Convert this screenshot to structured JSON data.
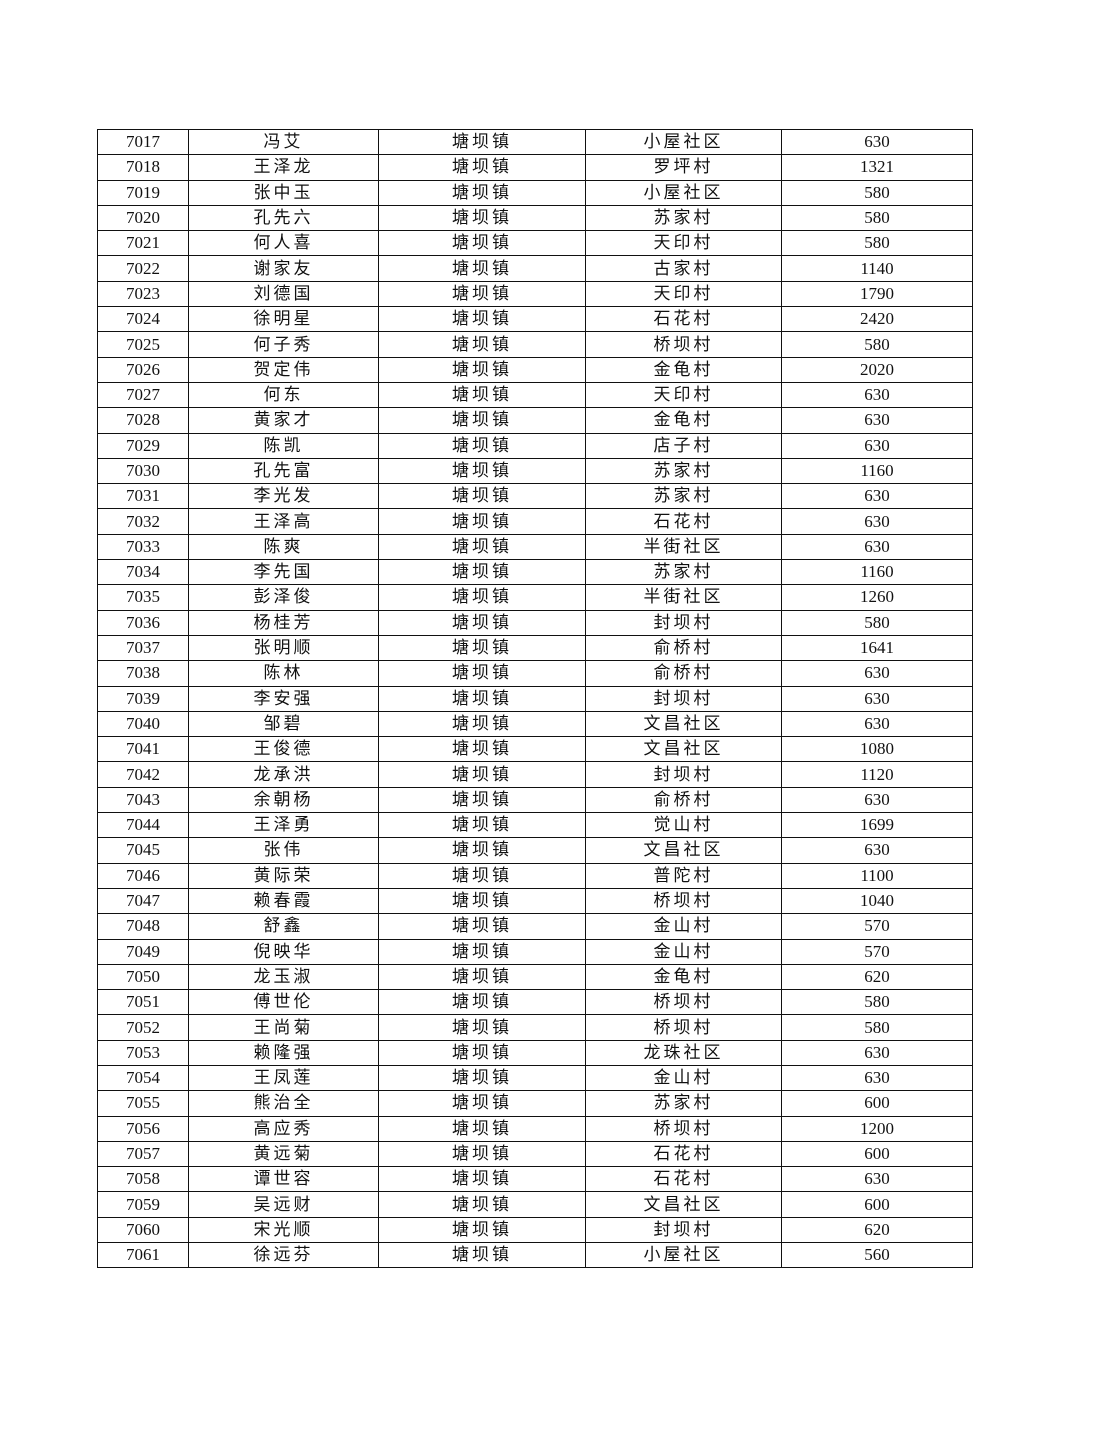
{
  "table": {
    "rows": [
      [
        "7017",
        "冯艾",
        "塘坝镇",
        "小屋社区",
        "630"
      ],
      [
        "7018",
        "王泽龙",
        "塘坝镇",
        "罗坪村",
        "1321"
      ],
      [
        "7019",
        "张中玉",
        "塘坝镇",
        "小屋社区",
        "580"
      ],
      [
        "7020",
        "孔先六",
        "塘坝镇",
        "苏家村",
        "580"
      ],
      [
        "7021",
        "何人喜",
        "塘坝镇",
        "天印村",
        "580"
      ],
      [
        "7022",
        "谢家友",
        "塘坝镇",
        "古家村",
        "1140"
      ],
      [
        "7023",
        "刘德国",
        "塘坝镇",
        "天印村",
        "1790"
      ],
      [
        "7024",
        "徐明星",
        "塘坝镇",
        "石花村",
        "2420"
      ],
      [
        "7025",
        "何子秀",
        "塘坝镇",
        "桥坝村",
        "580"
      ],
      [
        "7026",
        "贺定伟",
        "塘坝镇",
        "金龟村",
        "2020"
      ],
      [
        "7027",
        "何东",
        "塘坝镇",
        "天印村",
        "630"
      ],
      [
        "7028",
        "黄家才",
        "塘坝镇",
        "金龟村",
        "630"
      ],
      [
        "7029",
        "陈凯",
        "塘坝镇",
        "店子村",
        "630"
      ],
      [
        "7030",
        "孔先富",
        "塘坝镇",
        "苏家村",
        "1160"
      ],
      [
        "7031",
        "李光发",
        "塘坝镇",
        "苏家村",
        "630"
      ],
      [
        "7032",
        "王泽高",
        "塘坝镇",
        "石花村",
        "630"
      ],
      [
        "7033",
        "陈爽",
        "塘坝镇",
        "半街社区",
        "630"
      ],
      [
        "7034",
        "李先国",
        "塘坝镇",
        "苏家村",
        "1160"
      ],
      [
        "7035",
        "彭泽俊",
        "塘坝镇",
        "半街社区",
        "1260"
      ],
      [
        "7036",
        "杨桂芳",
        "塘坝镇",
        "封坝村",
        "580"
      ],
      [
        "7037",
        "张明顺",
        "塘坝镇",
        "俞桥村",
        "1641"
      ],
      [
        "7038",
        "陈林",
        "塘坝镇",
        "俞桥村",
        "630"
      ],
      [
        "7039",
        "李安强",
        "塘坝镇",
        "封坝村",
        "630"
      ],
      [
        "7040",
        "邹碧",
        "塘坝镇",
        "文昌社区",
        "630"
      ],
      [
        "7041",
        "王俊德",
        "塘坝镇",
        "文昌社区",
        "1080"
      ],
      [
        "7042",
        "龙承洪",
        "塘坝镇",
        "封坝村",
        "1120"
      ],
      [
        "7043",
        "余朝杨",
        "塘坝镇",
        "俞桥村",
        "630"
      ],
      [
        "7044",
        "王泽勇",
        "塘坝镇",
        "觉山村",
        "1699"
      ],
      [
        "7045",
        "张伟",
        "塘坝镇",
        "文昌社区",
        "630"
      ],
      [
        "7046",
        "黄际荣",
        "塘坝镇",
        "普陀村",
        "1100"
      ],
      [
        "7047",
        "赖春霞",
        "塘坝镇",
        "桥坝村",
        "1040"
      ],
      [
        "7048",
        "舒鑫",
        "塘坝镇",
        "金山村",
        "570"
      ],
      [
        "7049",
        "倪映华",
        "塘坝镇",
        "金山村",
        "570"
      ],
      [
        "7050",
        "龙玉淑",
        "塘坝镇",
        "金龟村",
        "620"
      ],
      [
        "7051",
        "傅世伦",
        "塘坝镇",
        "桥坝村",
        "580"
      ],
      [
        "7052",
        "王尚菊",
        "塘坝镇",
        "桥坝村",
        "580"
      ],
      [
        "7053",
        "赖隆强",
        "塘坝镇",
        "龙珠社区",
        "630"
      ],
      [
        "7054",
        "王凤莲",
        "塘坝镇",
        "金山村",
        "630"
      ],
      [
        "7055",
        "熊治全",
        "塘坝镇",
        "苏家村",
        "600"
      ],
      [
        "7056",
        "高应秀",
        "塘坝镇",
        "桥坝村",
        "1200"
      ],
      [
        "7057",
        "黄远菊",
        "塘坝镇",
        "石花村",
        "600"
      ],
      [
        "7058",
        "谭世容",
        "塘坝镇",
        "石花村",
        "630"
      ],
      [
        "7059",
        "吴远财",
        "塘坝镇",
        "文昌社区",
        "600"
      ],
      [
        "7060",
        "宋光顺",
        "塘坝镇",
        "封坝村",
        "620"
      ],
      [
        "7061",
        "徐远芬",
        "塘坝镇",
        "小屋社区",
        "560"
      ]
    ]
  }
}
